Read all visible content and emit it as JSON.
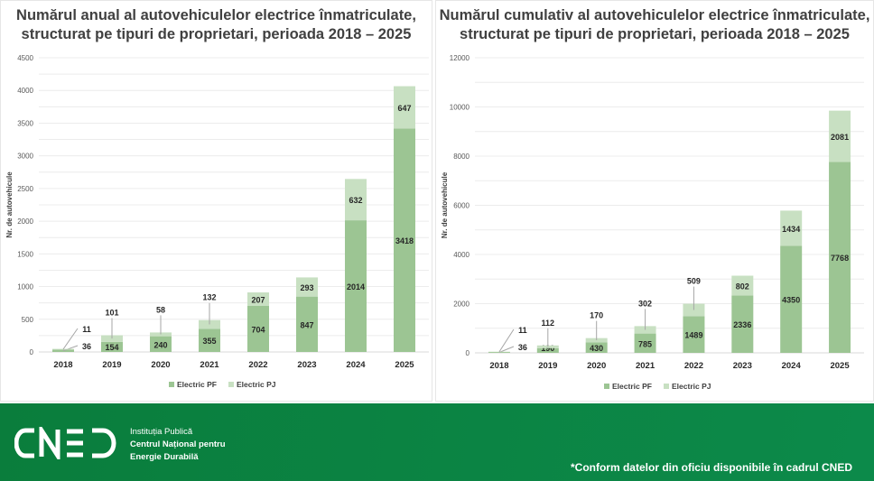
{
  "chart_data": [
    {
      "type": "bar",
      "stacked": true,
      "title": "Numărul anual al autovehiculelor electrice înmatriculate, structurat pe tipuri de proprietari, perioada 2018 – 2025",
      "title_lines": [
        "Numărul anual al autovehiculelor electrice înmatriculate,",
        "structurat pe tipuri de proprietari, perioada 2018 – 2025"
      ],
      "ylabel": "Nr. de autovehicule",
      "xlabel": "",
      "ylim": [
        0,
        4500
      ],
      "yticks": [
        0,
        500,
        1000,
        1500,
        2000,
        2500,
        3000,
        3500,
        4000,
        4500
      ],
      "categories": [
        "2018",
        "2019",
        "2020",
        "2021",
        "2022",
        "2023",
        "2024",
        "2025"
      ],
      "series": [
        {
          "name": "Electric PF",
          "color": "#9cc593",
          "values": [
            36,
            154,
            240,
            355,
            704,
            847,
            2014,
            3418
          ]
        },
        {
          "name": "Electric PJ",
          "color": "#c8e0c2",
          "values": [
            11,
            101,
            58,
            132,
            207,
            293,
            632,
            647
          ]
        }
      ],
      "legend": "bottom",
      "grid": true
    },
    {
      "type": "bar",
      "stacked": true,
      "title": "Numărul cumulativ al autovehiculelor electrice înmatriculate, structurat pe tipuri de proprietari, perioada 2018 – 2025",
      "title_lines": [
        "Numărul cumulativ al autovehiculelor electrice înmatriculate,",
        "structurat pe tipuri de proprietari, perioada 2018 – 2025"
      ],
      "ylabel": "Nr. de autovehicule",
      "xlabel": "",
      "ylim": [
        0,
        12000
      ],
      "yticks": [
        0,
        2000,
        4000,
        6000,
        8000,
        10000,
        12000
      ],
      "categories": [
        "2018",
        "2019",
        "2020",
        "2021",
        "2022",
        "2023",
        "2024",
        "2025"
      ],
      "series": [
        {
          "name": "Electric PF",
          "color": "#9cc593",
          "values": [
            36,
            190,
            430,
            785,
            1489,
            2336,
            4350,
            7768
          ]
        },
        {
          "name": "Electric PJ",
          "color": "#c8e0c2",
          "values": [
            11,
            112,
            170,
            302,
            509,
            802,
            1434,
            2081
          ]
        }
      ],
      "legend": "bottom",
      "grid": true
    }
  ],
  "footer": {
    "logo_text": "CNED",
    "institution_line1": "Instituția Publică",
    "institution_line2": "Centrul Național pentru",
    "institution_line3": "Energie Durabilă",
    "note": "*Conform datelor din oficiu disponibile în cadrul CNED"
  }
}
